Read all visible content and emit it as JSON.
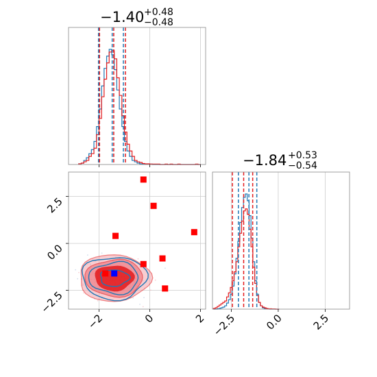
{
  "chart_data": {
    "type": "corner",
    "colors": {
      "red": "#e31a1c",
      "blue": "#1f77b4",
      "grid": "#cccccc",
      "marker_red": "#ff0000",
      "marker_blue": "#0000ff"
    },
    "x_ticks": {
      "x1": [
        "−2",
        "0",
        "2"
      ],
      "x2": [
        "−2.5",
        "0.0",
        "2.5"
      ]
    },
    "y_ticks": [
      "2.5",
      "0.0",
      "−2.5"
    ],
    "panels": [
      {
        "id": "hist-x1",
        "title": {
          "main": "−1.40",
          "sup": "+0.48",
          "sub": "−0.48"
        },
        "xlim": [
          -3.2,
          2.2
        ],
        "quantiles_red": [
          -1.98,
          -1.42,
          -0.96
        ],
        "quantiles_blue": [
          -2.02,
          -1.48,
          -1.04
        ],
        "x": [
          -2.75,
          -2.65,
          -2.55,
          -2.45,
          -2.35,
          -2.25,
          -2.15,
          -2.05,
          -1.95,
          -1.85,
          -1.75,
          -1.65,
          -1.55,
          -1.45,
          -1.35,
          -1.25,
          -1.15,
          -1.05,
          -0.95,
          -0.85,
          -0.75,
          -0.65,
          -0.55,
          -0.45,
          -0.35,
          -0.25,
          -0.15,
          -0.05,
          0.05,
          0.15,
          0.25,
          0.35,
          0.45,
          0.55,
          0.65,
          0.75,
          0.85,
          0.95,
          1.05,
          1.15,
          1.25,
          1.35,
          1.45,
          1.55,
          1.65,
          1.75,
          1.85,
          1.95
        ],
        "red": [
          0.5,
          1,
          2,
          3,
          6,
          8,
          12,
          22,
          34,
          50,
          63,
          75,
          83,
          84,
          78,
          64,
          51,
          36,
          24,
          15,
          10,
          6,
          3,
          2,
          1.5,
          0.8,
          0.5,
          0.5,
          0.3,
          0.3,
          0.3,
          0.3,
          0,
          0,
          0.3,
          0,
          0.3,
          0,
          0,
          0.3,
          0,
          0,
          0,
          0,
          0,
          0,
          0.3,
          0
        ],
        "blue": [
          0.5,
          1,
          3,
          5,
          8,
          11,
          17,
          28,
          41,
          58,
          71,
          80,
          85,
          81,
          70,
          55,
          41,
          28,
          17,
          10,
          6,
          3,
          2,
          1,
          0.5,
          0.3,
          0.3,
          0.3,
          0.3,
          0,
          0,
          0,
          0,
          0,
          0,
          0,
          0,
          0,
          0,
          0,
          0,
          0,
          0,
          0,
          0,
          0,
          0,
          0
        ]
      },
      {
        "id": "hist-x2",
        "title": {
          "main": "−1.84",
          "sup": "+0.53",
          "sub": "−0.54"
        },
        "xlim": [
          -3.5,
          3.8
        ],
        "quantiles_red": [
          -2.44,
          -1.84,
          -1.36
        ],
        "quantiles_blue": [
          -2.12,
          -1.56,
          -1.14
        ],
        "x": [
          -3.4,
          -3.3,
          -3.2,
          -3.1,
          -3.0,
          -2.9,
          -2.8,
          -2.7,
          -2.6,
          -2.5,
          -2.4,
          -2.3,
          -2.2,
          -2.1,
          -2.0,
          -1.9,
          -1.8,
          -1.7,
          -1.6,
          -1.5,
          -1.4,
          -1.3,
          -1.2,
          -1.1,
          -1.0,
          -0.9,
          -0.8,
          -0.7,
          -0.6,
          -0.5,
          -0.4,
          -0.3,
          -0.2,
          -0.1,
          0.0
        ],
        "red": [
          1,
          2,
          4,
          6,
          8,
          10,
          12,
          18,
          24,
          32,
          42,
          55,
          70,
          92,
          112,
          130,
          145,
          148,
          140,
          118,
          92,
          62,
          38,
          20,
          10,
          5,
          3,
          2,
          1,
          0.5,
          0.5,
          0.3,
          0.3,
          0,
          0
        ],
        "blue": [
          0,
          0,
          0.5,
          1,
          2,
          3,
          5,
          9,
          14,
          22,
          34,
          52,
          75,
          100,
          128,
          150,
          165,
          170,
          160,
          138,
          105,
          70,
          42,
          22,
          10,
          5,
          2,
          1,
          0.5,
          0.3,
          0,
          0,
          0,
          0,
          0
        ]
      },
      {
        "id": "scatter-2d",
        "xlim": [
          -3.2,
          2.2
        ],
        "ylim": [
          -3.5,
          3.8
        ],
        "markers_red": [
          [
            -0.25,
            3.4
          ],
          [
            0.15,
            2.0
          ],
          [
            -1.35,
            0.4
          ],
          [
            1.75,
            0.6
          ],
          [
            -0.25,
            -1.1
          ],
          [
            0.5,
            -0.8
          ],
          [
            -1.75,
            -1.6
          ],
          [
            0.6,
            -2.4
          ]
        ],
        "marker_blue": [
          -1.4,
          -1.6
        ],
        "contour_center": [
          -1.4,
          -1.84
        ]
      }
    ]
  }
}
